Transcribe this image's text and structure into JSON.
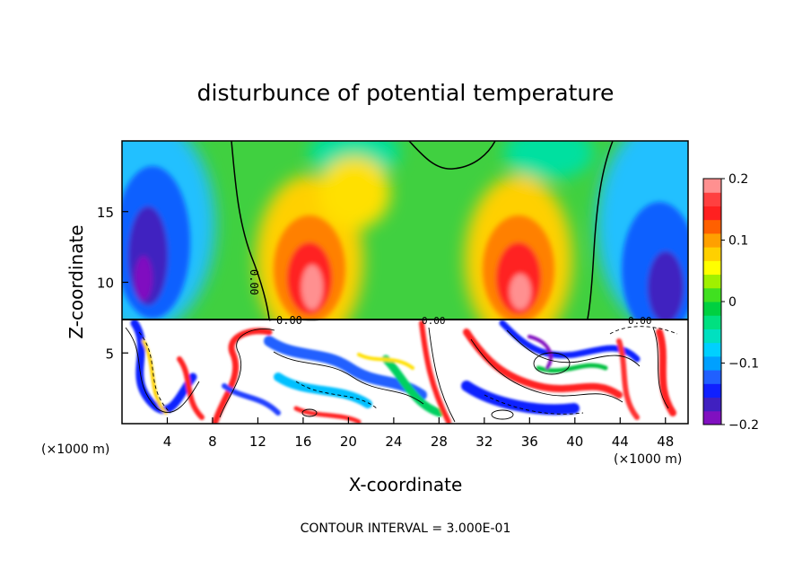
{
  "chart_data": {
    "type": "heatmap",
    "title": "disturbunce of potential temperature",
    "xlabel": "X-coordinate",
    "ylabel": "Z-coordinate",
    "x_unit_left": "(×1000 m)",
    "x_unit_right": "(×1000 m)",
    "footer": "CONTOUR INTERVAL = 3.000E-01",
    "xlim": [
      0,
      50
    ],
    "ylim": [
      0,
      20
    ],
    "x_ticks": [
      4,
      8,
      12,
      16,
      20,
      24,
      28,
      32,
      36,
      40,
      44,
      48
    ],
    "y_ticks": [
      5,
      10,
      15
    ],
    "colorbar": {
      "min": -0.2,
      "max": 0.2,
      "tick_values": [
        0.2,
        0.1,
        0,
        -0.1,
        -0.2
      ],
      "tick_labels": [
        "0.2",
        "0.1",
        "0",
        "−0.1",
        "−0.2"
      ]
    },
    "contour_labels": [
      "0.00",
      "0.00",
      "0.00",
      "0.00"
    ]
  }
}
